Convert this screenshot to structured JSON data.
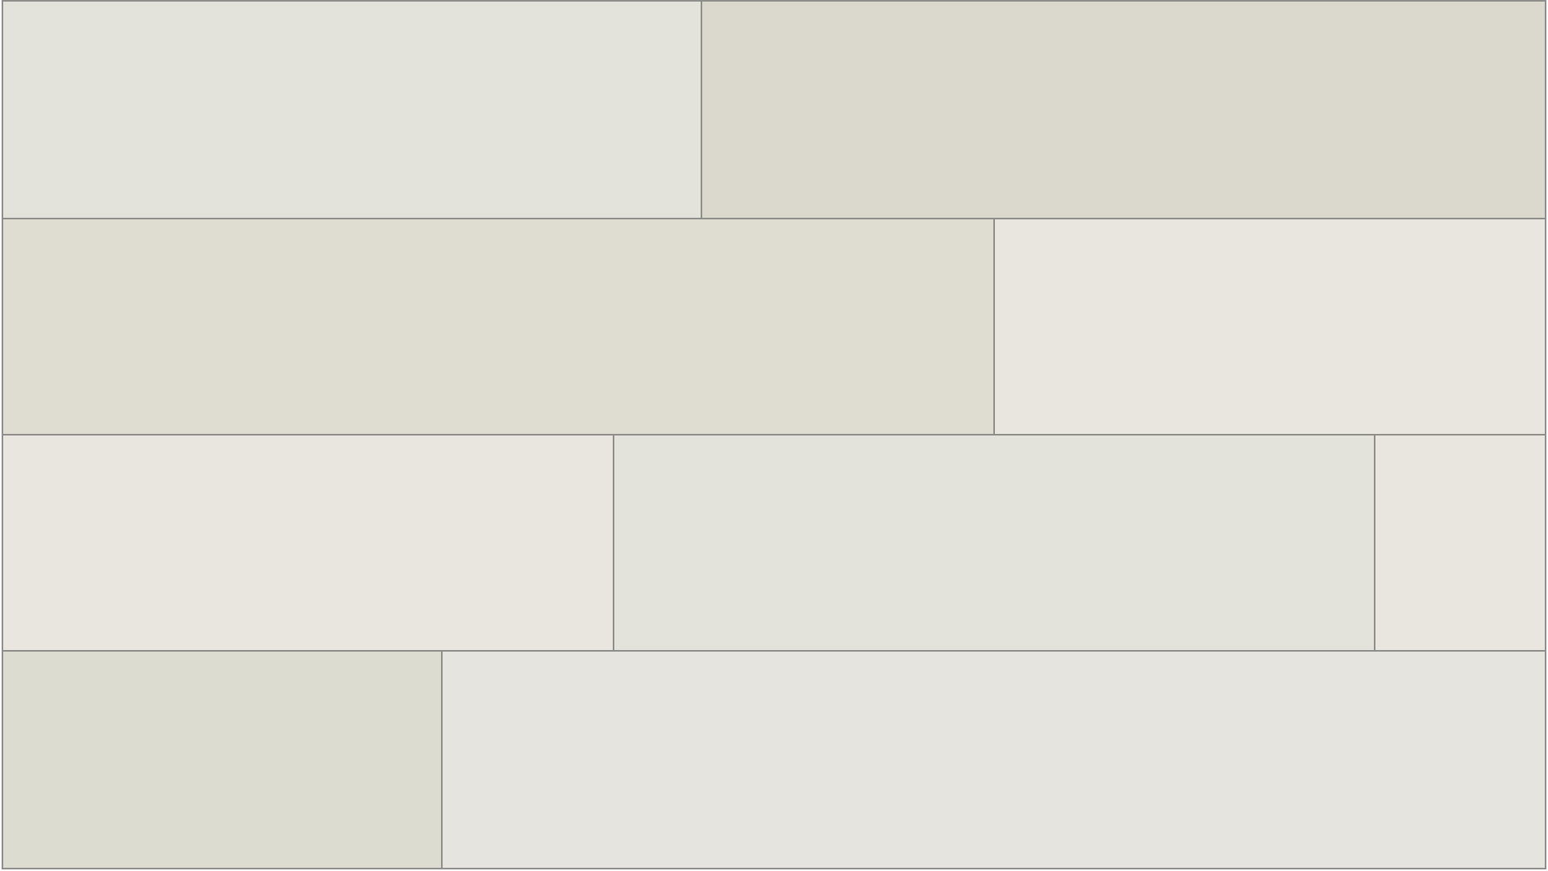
{
  "rows": [
    {
      "planks": [
        {
          "color": "#e3e3db"
        },
        {
          "color": "#dbd9cd"
        }
      ]
    },
    {
      "planks": [
        {
          "color": "#dfddd1"
        },
        {
          "color": "#e8e6df"
        }
      ]
    },
    {
      "planks": [
        {
          "color": "#e8e6df"
        },
        {
          "color": "#e3e3db"
        },
        {
          "color": "#e8e6df"
        }
      ]
    },
    {
      "planks": [
        {
          "color": "#dcdcd0"
        },
        {
          "color": "#e5e4df"
        }
      ]
    }
  ],
  "border_color": "#8d8d8a"
}
